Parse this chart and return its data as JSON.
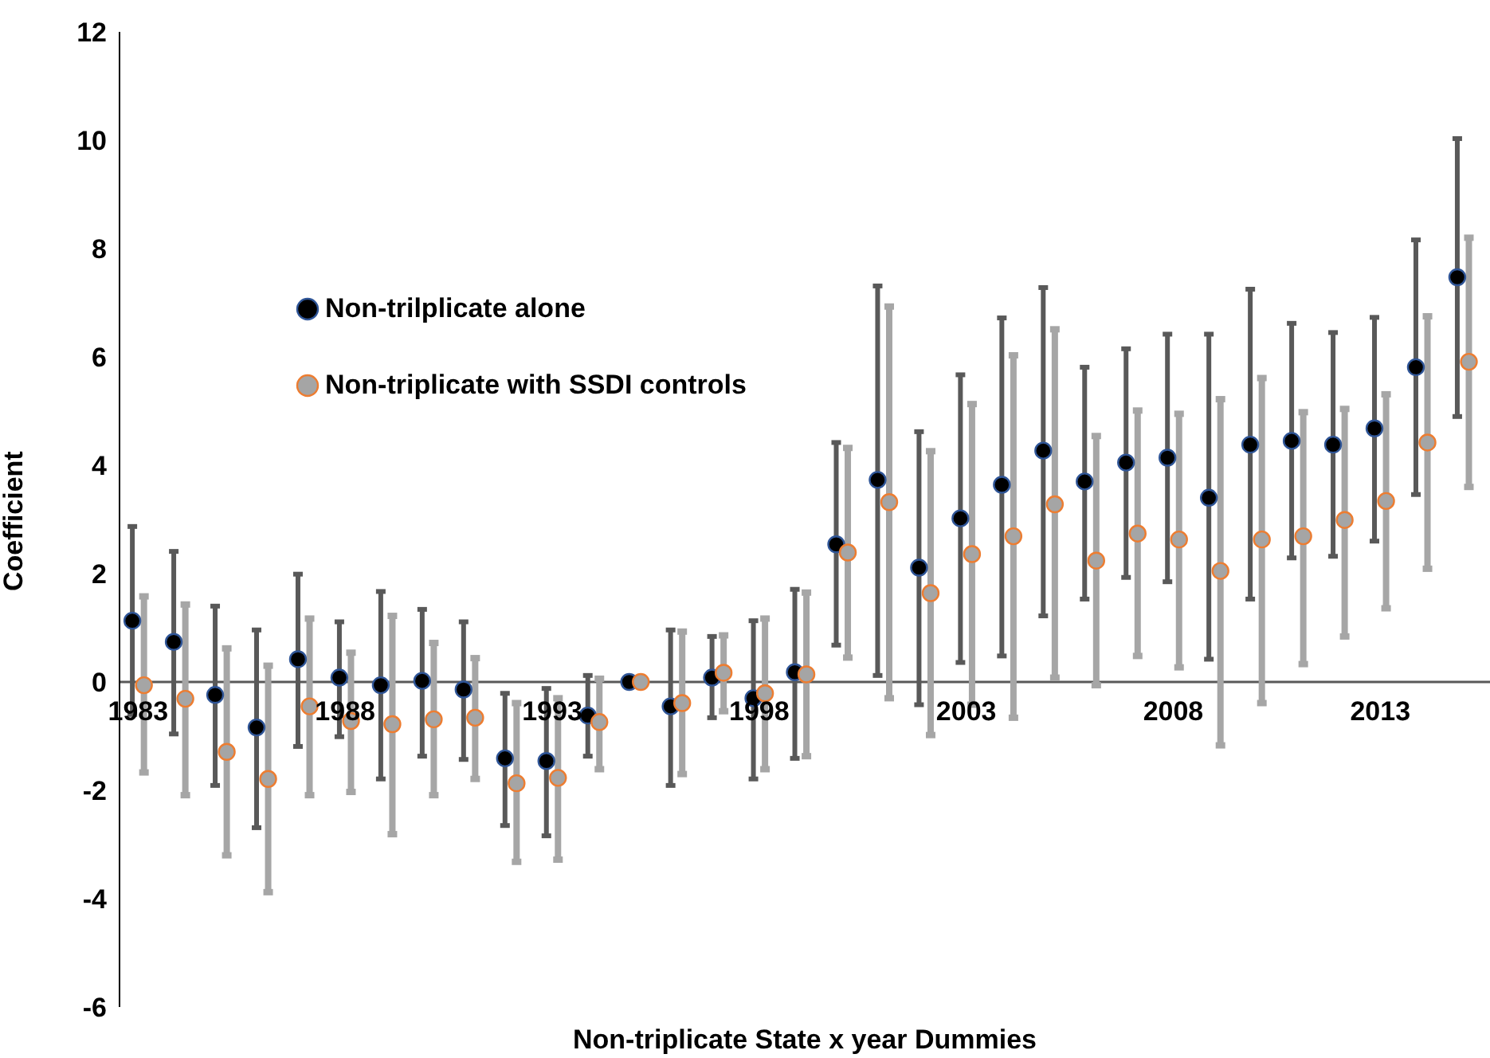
{
  "chart_data": {
    "type": "scatter",
    "xlabel": "Non-triplicate State x year Dummies",
    "ylabel": "Coefficient",
    "categories": [
      "1983",
      null,
      null,
      null,
      null,
      "1988",
      null,
      null,
      null,
      null,
      "1993",
      null,
      null,
      null,
      null,
      "1998",
      null,
      null,
      null,
      null,
      "2003",
      null,
      null,
      null,
      null,
      "2008",
      null,
      null,
      null,
      null,
      "2013",
      null,
      null
    ],
    "series": [
      {
        "name": "Non-trilplicate alone",
        "color": "#000000",
        "values": [
          1.13,
          0.74,
          -0.24,
          -0.84,
          0.42,
          0.08,
          -0.06,
          0.02,
          -0.14,
          -1.41,
          -1.46,
          -0.62,
          0.0,
          -0.45,
          0.08,
          -0.3,
          0.18,
          2.54,
          3.73,
          2.11,
          3.02,
          3.64,
          4.27,
          3.7,
          4.05,
          4.14,
          3.4,
          4.38,
          4.45,
          4.38,
          4.68,
          5.81,
          7.47
        ],
        "errors": [
          [
            -0.6,
            2.87
          ],
          [
            -0.96,
            2.41
          ],
          [
            -1.91,
            1.4
          ],
          [
            -2.69,
            0.96
          ],
          [
            -1.19,
            1.99
          ],
          [
            -1.01,
            1.11
          ],
          [
            -1.79,
            1.67
          ],
          [
            -1.37,
            1.34
          ],
          [
            -1.43,
            1.11
          ],
          [
            -2.65,
            -0.21
          ],
          [
            -2.84,
            -0.12
          ],
          [
            -1.37,
            0.12
          ],
          null,
          [
            -1.91,
            0.96
          ],
          [
            -0.66,
            0.84
          ],
          [
            -1.79,
            1.13
          ],
          [
            -1.41,
            1.71
          ],
          [
            0.68,
            4.42
          ],
          [
            0.12,
            7.31
          ],
          [
            -0.42,
            4.62
          ],
          [
            0.36,
            5.67
          ],
          [
            0.48,
            6.72
          ],
          [
            1.22,
            7.28
          ],
          [
            1.53,
            5.81
          ],
          [
            1.93,
            6.15
          ],
          [
            1.85,
            6.42
          ],
          [
            0.42,
            6.42
          ],
          [
            1.53,
            7.25
          ],
          [
            2.29,
            6.62
          ],
          [
            2.32,
            6.45
          ],
          [
            2.6,
            6.73
          ],
          [
            3.46,
            8.16
          ],
          [
            4.9,
            10.03
          ]
        ]
      },
      {
        "name": "Non-triplicate with SSDI controls",
        "color": "#a5a5a5",
        "values": [
          -0.06,
          -0.31,
          -1.29,
          -1.79,
          -0.45,
          -0.72,
          -0.78,
          -0.69,
          -0.66,
          -1.87,
          -1.77,
          -0.74,
          0.0,
          -0.39,
          0.17,
          -0.21,
          0.14,
          2.39,
          3.32,
          1.64,
          2.36,
          2.69,
          3.28,
          2.24,
          2.74,
          2.63,
          2.05,
          2.63,
          2.69,
          2.99,
          3.34,
          4.42,
          5.91
        ],
        "errors": [
          [
            -1.67,
            1.58
          ],
          [
            -2.09,
            1.43
          ],
          [
            -3.2,
            0.62
          ],
          [
            -3.88,
            0.3
          ],
          [
            -2.09,
            1.17
          ],
          [
            -2.03,
            0.54
          ],
          [
            -2.81,
            1.22
          ],
          [
            -2.09,
            0.72
          ],
          [
            -1.79,
            0.44
          ],
          [
            -3.32,
            -0.39
          ],
          [
            -3.28,
            -0.3
          ],
          [
            -1.61,
            0.06
          ],
          null,
          [
            -1.7,
            0.93
          ],
          [
            -0.54,
            0.86
          ],
          [
            -1.61,
            1.17
          ],
          [
            -1.37,
            1.65
          ],
          [
            0.45,
            4.32
          ],
          [
            -0.3,
            6.93
          ],
          [
            -0.98,
            4.26
          ],
          [
            -0.42,
            5.13
          ],
          [
            -0.66,
            6.03
          ],
          [
            0.08,
            6.51
          ],
          [
            -0.06,
            4.54
          ],
          [
            0.48,
            5.01
          ],
          [
            0.27,
            4.95
          ],
          [
            -1.17,
            5.22
          ],
          [
            -0.39,
            5.61
          ],
          [
            0.33,
            4.98
          ],
          [
            0.84,
            5.04
          ],
          [
            1.36,
            5.31
          ],
          [
            2.09,
            6.75
          ],
          [
            3.6,
            8.2
          ]
        ]
      }
    ],
    "ylim": [
      -6,
      12
    ],
    "yticks": [
      -6,
      -4,
      -2,
      0,
      2,
      4,
      6,
      8,
      10,
      12
    ],
    "legend": "left",
    "marker": "circle",
    "grid": false
  }
}
